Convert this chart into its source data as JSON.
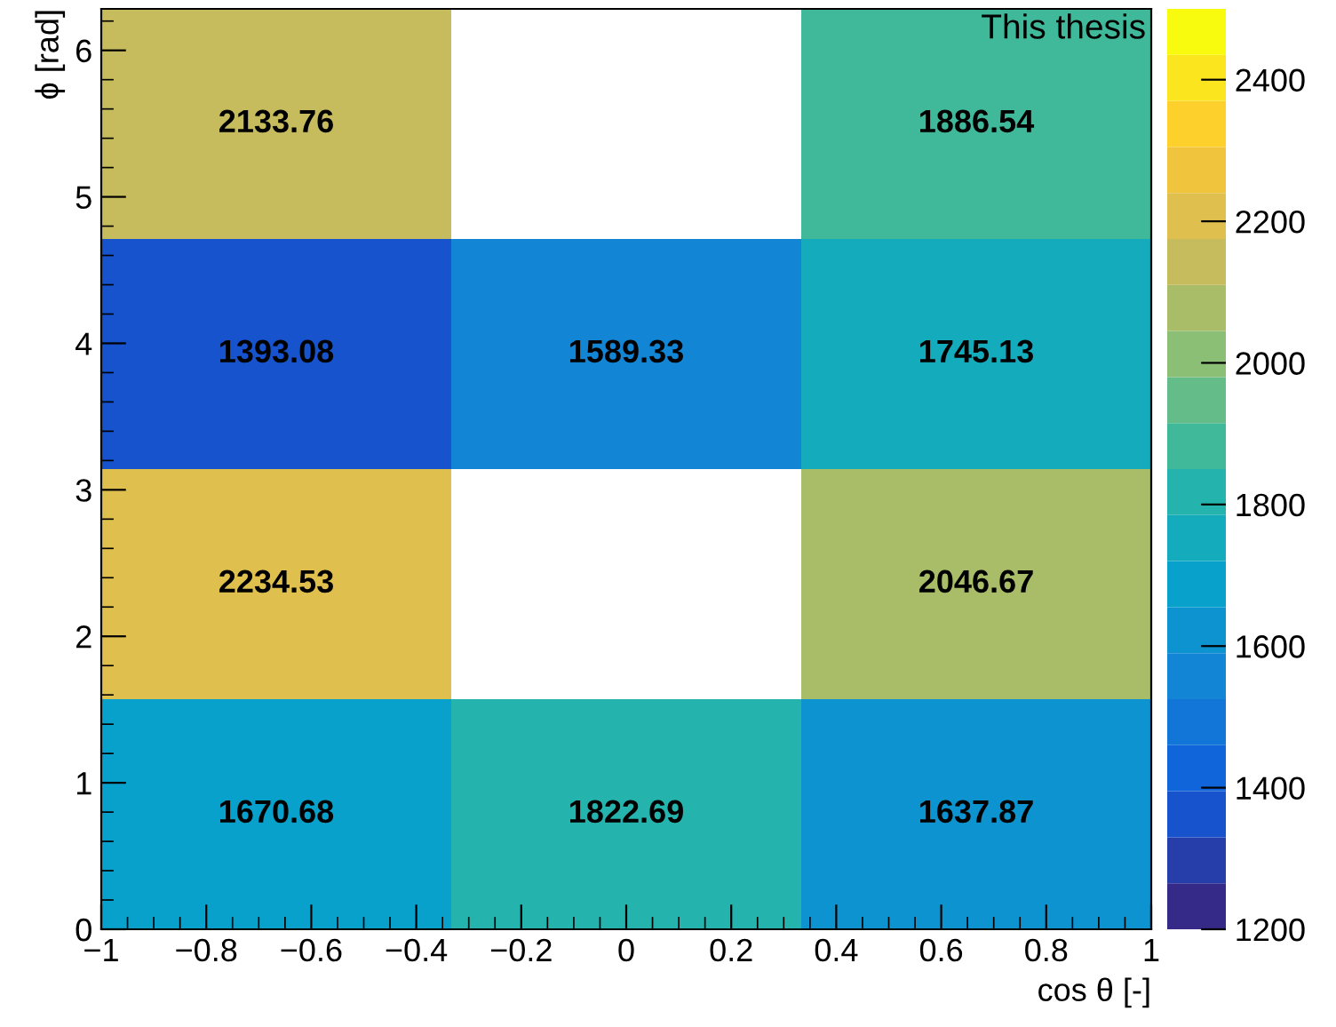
{
  "chart_data": {
    "type": "heatmap",
    "xlabel": "cos θ [-]",
    "ylabel": "ϕ [rad]",
    "annotations": [
      "This thesis"
    ],
    "x": [
      -0.6667,
      0,
      0.6667
    ],
    "y": [
      5.4978,
      3.927,
      2.3562,
      0.7854
    ],
    "cells": [
      [
        2133.76,
        null,
        1886.54
      ],
      [
        1393.08,
        1589.33,
        1745.13
      ],
      [
        2234.53,
        null,
        2046.67
      ],
      [
        1670.68,
        1822.69,
        1637.87
      ]
    ],
    "data_labels": true,
    "xlim": [
      -1,
      1
    ],
    "xticks": [
      {
        "value": -1,
        "label": "−1"
      },
      {
        "value": -0.8,
        "label": "−0.8"
      },
      {
        "value": -0.6,
        "label": "−0.6"
      },
      {
        "value": -0.4,
        "label": "−0.4"
      },
      {
        "value": -0.2,
        "label": "−0.2"
      },
      0,
      0.2,
      0.4,
      0.6,
      0.8,
      1
    ],
    "ylim": [
      0,
      6.2832
    ],
    "yticks": [
      0,
      1,
      2,
      3,
      4,
      5,
      6
    ],
    "clim": [
      1200,
      2500
    ],
    "cticks": [
      1200,
      1400,
      1600,
      1800,
      2000,
      2200,
      2400
    ],
    "grid": false
  }
}
